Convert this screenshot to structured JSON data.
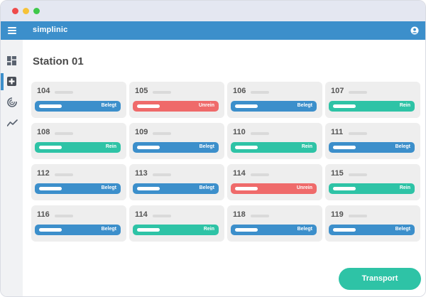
{
  "app": {
    "title": "simplinic"
  },
  "page": {
    "title": "Station 01"
  },
  "colors": {
    "belegt": "#3c8fcb",
    "unrein": "#ef6a6a",
    "rein": "#2ec3a6",
    "appbar": "#3c8fcb"
  },
  "sidebar": {
    "items": [
      {
        "icon": "dashboard-icon",
        "active": false
      },
      {
        "icon": "plus-square-icon",
        "active": true
      },
      {
        "icon": "radar-icon",
        "active": false
      },
      {
        "icon": "trend-line-icon",
        "active": false
      }
    ]
  },
  "rooms": [
    {
      "number": "104",
      "status": "Belegt",
      "kind": "belegt"
    },
    {
      "number": "105",
      "status": "Unrein",
      "kind": "unrein"
    },
    {
      "number": "106",
      "status": "Belegt",
      "kind": "belegt"
    },
    {
      "number": "107",
      "status": "Rein",
      "kind": "rein"
    },
    {
      "number": "108",
      "status": "Rein",
      "kind": "rein"
    },
    {
      "number": "109",
      "status": "Belegt",
      "kind": "belegt"
    },
    {
      "number": "110",
      "status": "Rein",
      "kind": "rein"
    },
    {
      "number": "111",
      "status": "Belegt",
      "kind": "belegt"
    },
    {
      "number": "112",
      "status": "Belegt",
      "kind": "belegt"
    },
    {
      "number": "113",
      "status": "Belegt",
      "kind": "belegt"
    },
    {
      "number": "114",
      "status": "Unrein",
      "kind": "unrein"
    },
    {
      "number": "115",
      "status": "Rein",
      "kind": "rein"
    },
    {
      "number": "116",
      "status": "Belegt",
      "kind": "belegt"
    },
    {
      "number": "114",
      "status": "Rein",
      "kind": "rein"
    },
    {
      "number": "118",
      "status": "Belegt",
      "kind": "belegt"
    },
    {
      "number": "119",
      "status": "Belegt",
      "kind": "belegt"
    }
  ],
  "actions": {
    "transport_label": "Transport"
  }
}
